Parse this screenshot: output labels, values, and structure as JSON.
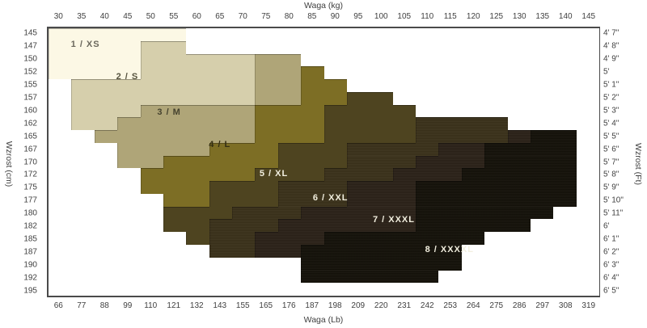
{
  "chart_data": {
    "type": "heatmap",
    "title": "",
    "description": "Clothing size chart: height vs weight stepped size regions",
    "top_axis": {
      "label": "Waga  (kg)",
      "ticks": [
        "30",
        "35",
        "40",
        "45",
        "50",
        "55",
        "60",
        "65",
        "70",
        "75",
        "80",
        "85",
        "90",
        "95",
        "100",
        "105",
        "110",
        "115",
        "120",
        "125",
        "130",
        "135",
        "140",
        "145"
      ]
    },
    "bottom_axis": {
      "label": "Waga  (Lb)",
      "ticks": [
        "66",
        "77",
        "88",
        "99",
        "110",
        "121",
        "132",
        "143",
        "155",
        "165",
        "176",
        "187",
        "198",
        "209",
        "220",
        "231",
        "242",
        "253",
        "264",
        "275",
        "286",
        "297",
        "308",
        "319"
      ]
    },
    "left_axis": {
      "label": "Wzrost  (cm)",
      "ticks": [
        "145",
        "147",
        "150",
        "152",
        "155",
        "157",
        "160",
        "162",
        "165",
        "167",
        "170",
        "172",
        "175",
        "177",
        "180",
        "182",
        "185",
        "187",
        "190",
        "192",
        "195"
      ]
    },
    "right_axis": {
      "label": "Wzrost  (Ft)",
      "ticks": [
        "4' 7\"",
        "4' 8\"",
        "4' 9\"",
        "5'",
        "5' 1\"",
        "5' 2\"",
        "5' 3\"",
        "5' 4\"",
        "5' 5\"",
        "5' 6\"",
        "5' 7\"",
        "5' 8\"",
        "5' 9\"",
        "5' 10\"",
        "5' 11\"",
        "6'",
        "6' 1\"",
        "6' 2\"",
        "6' 3\"",
        "6' 4\"",
        "6' 5\""
      ]
    },
    "empty_color": "#ffffff",
    "sizes": [
      {
        "digit": "1",
        "label": "1  /  XS",
        "color": "#fcf8e5",
        "text_color": "#6a675c",
        "x_pct": 6.7,
        "y_pct": 6.0
      },
      {
        "digit": "2",
        "label": "2  /  S",
        "color": "#d6cfac",
        "text_color": "#575440",
        "x_pct": 14.3,
        "y_pct": 18.2
      },
      {
        "digit": "3",
        "label": "3  /  M",
        "color": "#afa578",
        "text_color": "#46432f",
        "x_pct": 21.9,
        "y_pct": 31.3
      },
      {
        "digit": "4",
        "label": "4  /  L",
        "color": "#7d6e25",
        "text_color": "#332e13",
        "x_pct": 31.1,
        "y_pct": 43.6
      },
      {
        "digit": "5",
        "label": "5  /  XL",
        "color": "#4e4420",
        "text_color": "#f2efdf",
        "x_pct": 40.9,
        "y_pct": 54.3
      },
      {
        "digit": "6",
        "label": "6  /  XXL",
        "color": "#393019",
        "text_color": "#f2efdf",
        "x_pct": 51.2,
        "y_pct": 63.3
      },
      {
        "digit": "7",
        "label": "7  /  XXXL",
        "color": "#2a2017",
        "text_color": "#f2efdf",
        "x_pct": 62.7,
        "y_pct": 71.6
      },
      {
        "digit": "8",
        "label": "8  /  XXXXL",
        "color": "#131008",
        "text_color": "#f2efdf",
        "x_pct": 72.8,
        "y_pct": 82.7
      }
    ],
    "grid": {
      "cols": 24,
      "rows": 21,
      "cells": [
        "111111000000000000000000",
        "111122000000000000000000",
        "111122222330000000000000",
        "111122222334000000000000",
        "022222222334400000000000",
        "022222222334455000000000",
        "022233333444555500000000",
        "022333333444555566660000",
        "003333333444555566667880",
        "000333344455566667788880",
        "000334444455566677788880",
        "000044444555666777888880",
        "000044455566677788888880",
        "000004455566677788888880",
        "000005556667777788888800",
        "000005566677777788888000",
        "000000566777888888800000",
        "000000066778888888000000",
        "000000000008888888000000",
        "000000000008888880000000",
        "000000000000000000000000"
      ]
    }
  }
}
